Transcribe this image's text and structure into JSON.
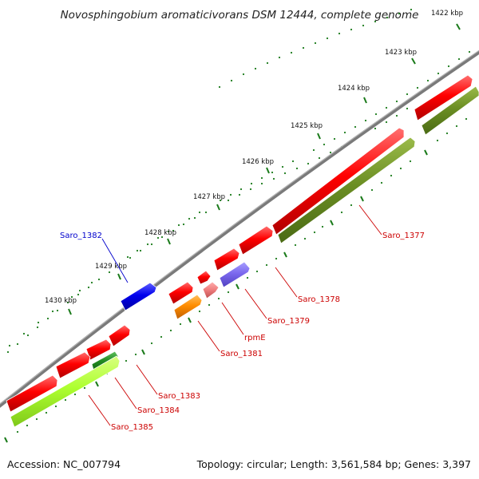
{
  "title": "Novosphingobium aromaticivorans DSM 12444, complete genome",
  "footer": {
    "accession": "Accession: NC_007794",
    "summary": "Topology: circular; Length: 3,561,584 bp; Genes: 3,397"
  },
  "ruler": {
    "ticks": [
      {
        "label": "1422 kbp"
      },
      {
        "label": "1423 kbp"
      },
      {
        "label": "1424 kbp"
      },
      {
        "label": "1425 kbp"
      },
      {
        "label": "1426 kbp"
      },
      {
        "label": "1427 kbp"
      },
      {
        "label": "1428 kbp"
      },
      {
        "label": "1429 kbp"
      },
      {
        "label": "1430 kbp"
      }
    ]
  },
  "genes": [
    {
      "name": "Saro_1377",
      "color": "#cc0000"
    },
    {
      "name": "Saro_1378",
      "color": "#cc0000"
    },
    {
      "name": "Saro_1379",
      "color": "#cc0000"
    },
    {
      "name": "rpmE",
      "color": "#cc0000"
    },
    {
      "name": "Saro_1381",
      "color": "#cc0000"
    },
    {
      "name": "Saro_1382",
      "color": "#0000cc"
    },
    {
      "name": "Saro_1383",
      "color": "#cc0000"
    },
    {
      "name": "Saro_1384",
      "color": "#cc0000"
    },
    {
      "name": "Saro_1385",
      "color": "#cc0000"
    }
  ],
  "colors": {
    "backbone": "#808080",
    "cds_red": "#ff0000",
    "cds_blue": "#0000ee",
    "olive": "#6b8e23",
    "lime": "#adff2f",
    "orange": "#ff8c00",
    "purple": "#7b68ee",
    "pink": "#f08080",
    "green": "#228b22",
    "dots": "#1a7a1a"
  }
}
